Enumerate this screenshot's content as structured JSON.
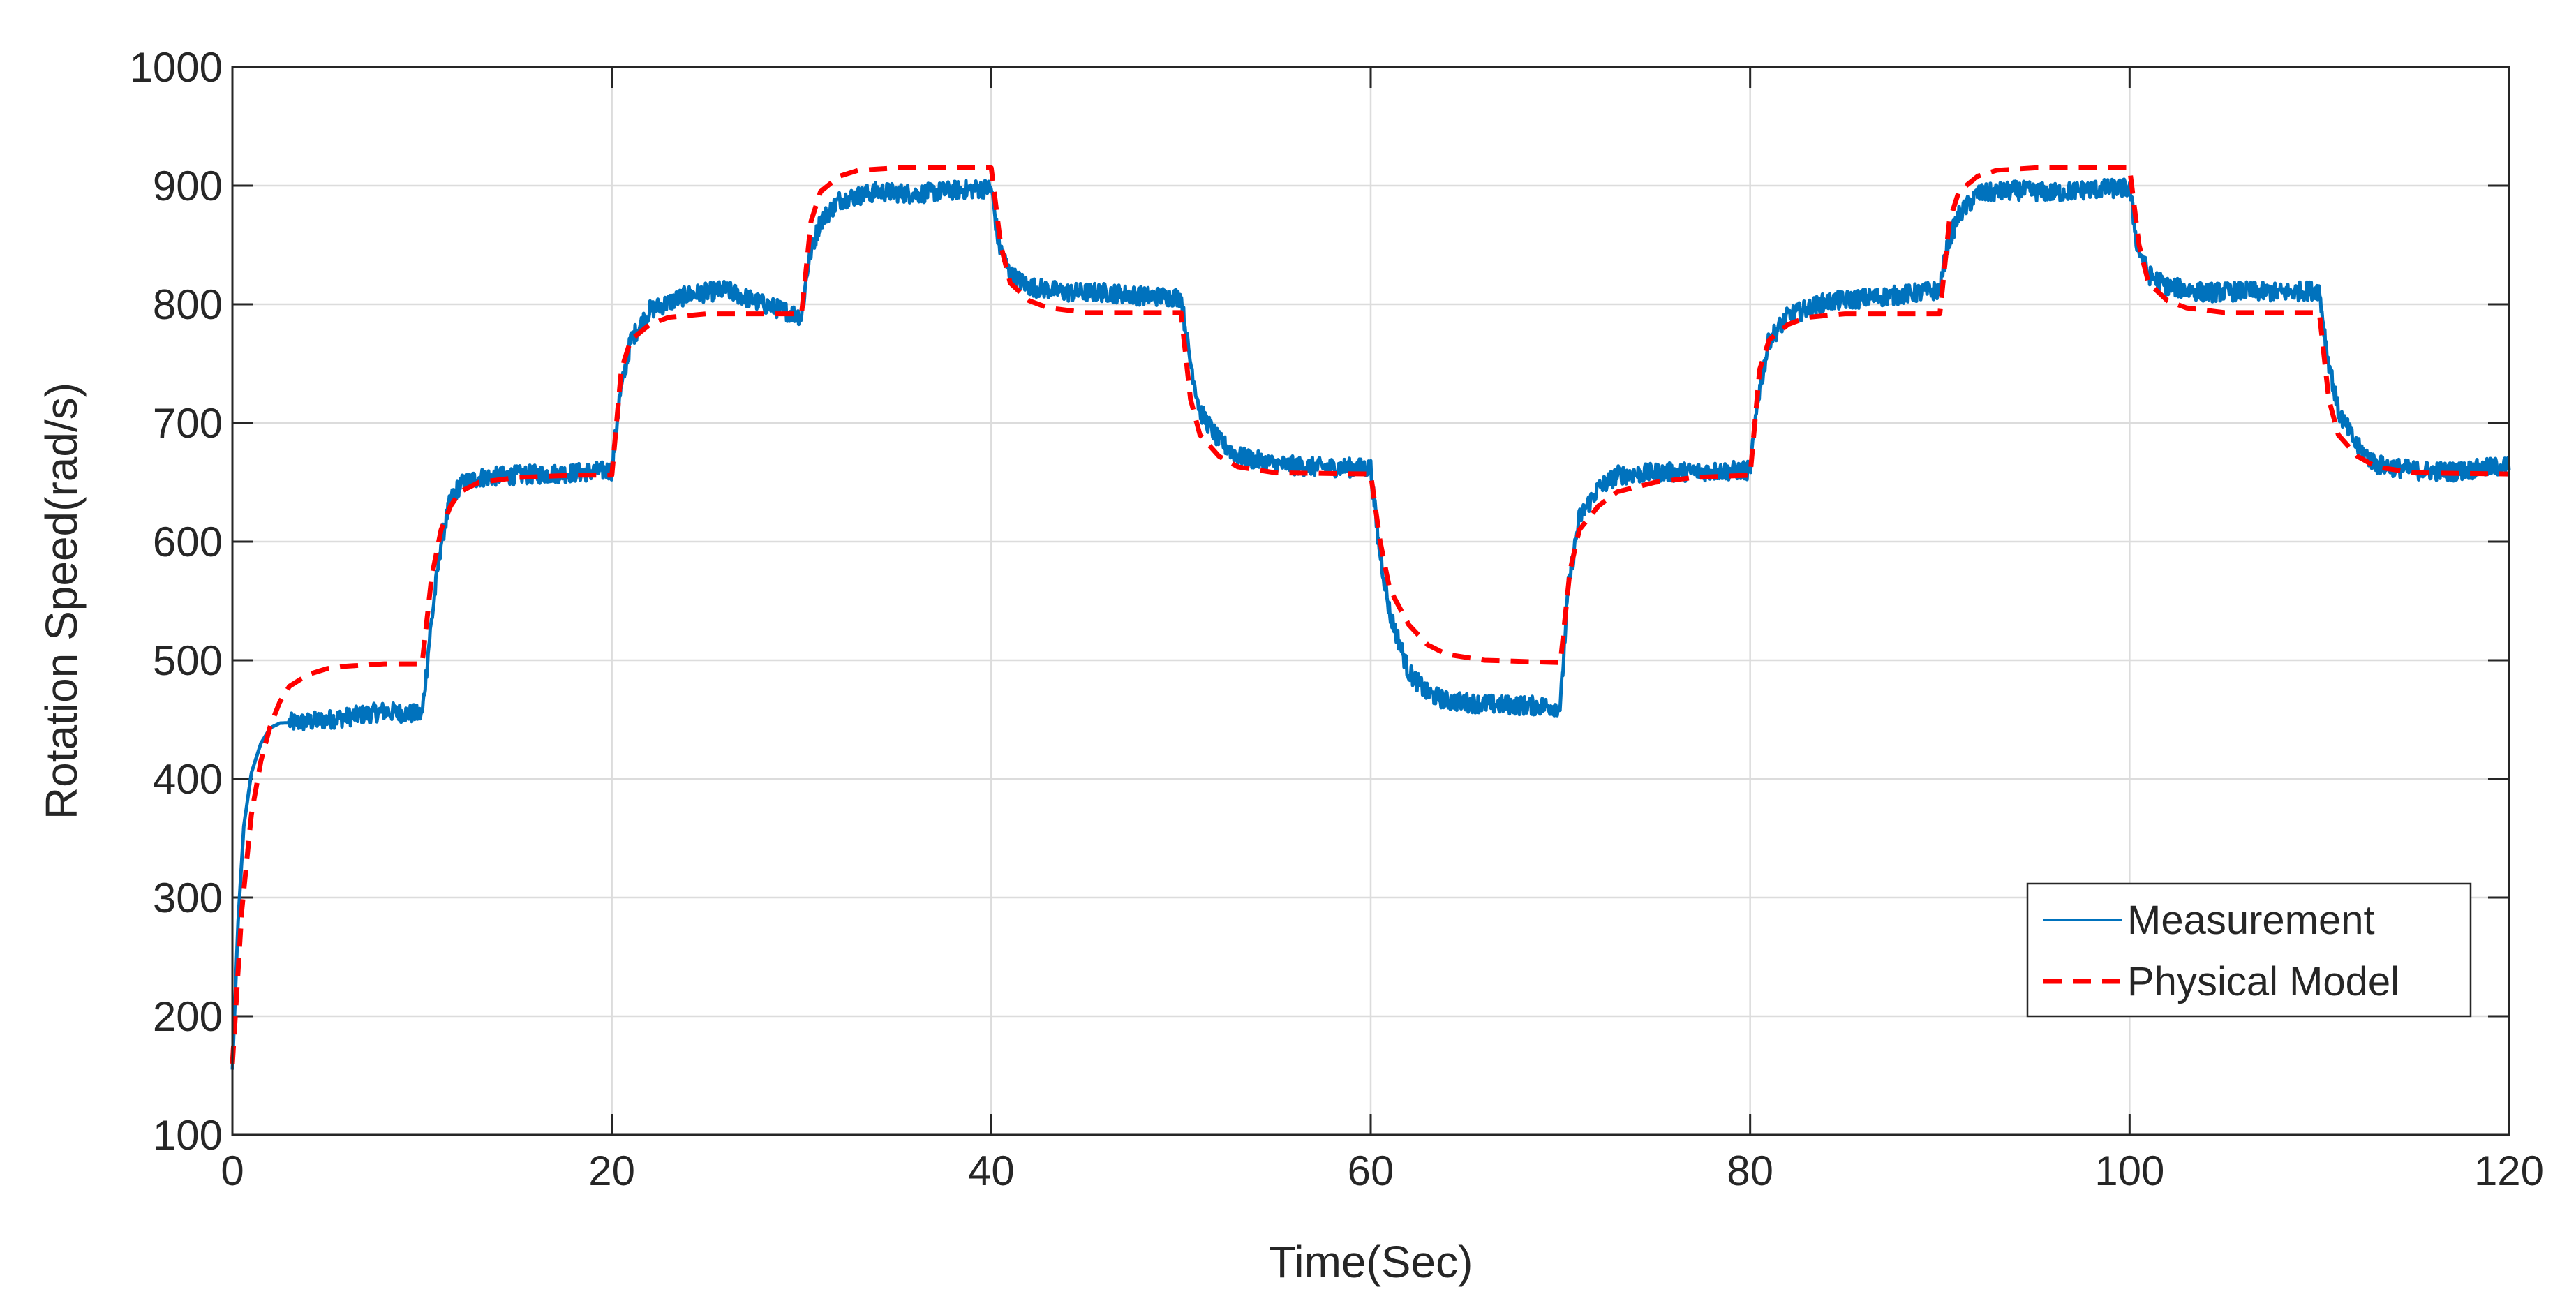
{
  "chart_data": {
    "type": "line",
    "title": "",
    "xlabel": "Time(Sec)",
    "ylabel": "Rotation Speed(rad/s)",
    "xlim": [
      0,
      120
    ],
    "ylim": [
      100,
      1000
    ],
    "xticks": [
      0,
      20,
      40,
      60,
      80,
      100,
      120
    ],
    "yticks": [
      100,
      200,
      300,
      400,
      500,
      600,
      700,
      800,
      900,
      1000
    ],
    "xtick_labels": [
      "0",
      "20",
      "40",
      "60",
      "80",
      "100",
      "120"
    ],
    "ytick_labels": [
      "100",
      "200",
      "300",
      "400",
      "500",
      "600",
      "700",
      "800",
      "900",
      "1000"
    ],
    "grid": true,
    "legend_position": "bottom-right",
    "series": [
      {
        "name": "Measurement",
        "color": "#0072BD",
        "style": "solid",
        "noise_band": 8,
        "points": [
          [
            0,
            155
          ],
          [
            0.3,
            280
          ],
          [
            0.6,
            360
          ],
          [
            1,
            405
          ],
          [
            1.5,
            430
          ],
          [
            2,
            443
          ],
          [
            2.5,
            447
          ],
          [
            4,
            448
          ],
          [
            6,
            452
          ],
          [
            8,
            457
          ],
          [
            10,
            454
          ],
          [
            10.4,
            520
          ],
          [
            11,
            600
          ],
          [
            11.5,
            635
          ],
          [
            12,
            648
          ],
          [
            13,
            654
          ],
          [
            15,
            656
          ],
          [
            18,
            658
          ],
          [
            20,
            660
          ],
          [
            20.4,
            720
          ],
          [
            21,
            770
          ],
          [
            22,
            795
          ],
          [
            24,
            808
          ],
          [
            26,
            812
          ],
          [
            28,
            800
          ],
          [
            30,
            790
          ],
          [
            30.4,
            840
          ],
          [
            31,
            870
          ],
          [
            32,
            888
          ],
          [
            34,
            895
          ],
          [
            36,
            893
          ],
          [
            38,
            896
          ],
          [
            40,
            898
          ],
          [
            40.4,
            850
          ],
          [
            41,
            825
          ],
          [
            42,
            815
          ],
          [
            44,
            810
          ],
          [
            46,
            810
          ],
          [
            48,
            807
          ],
          [
            50,
            806
          ],
          [
            50.4,
            760
          ],
          [
            51,
            710
          ],
          [
            52,
            685
          ],
          [
            53,
            672
          ],
          [
            55,
            665
          ],
          [
            57,
            663
          ],
          [
            60,
            662
          ],
          [
            60.4,
            600
          ],
          [
            61,
            540
          ],
          [
            62,
            490
          ],
          [
            63,
            472
          ],
          [
            64,
            466
          ],
          [
            66,
            463
          ],
          [
            68,
            462
          ],
          [
            70,
            461
          ],
          [
            70.4,
            560
          ],
          [
            71,
            620
          ],
          [
            72,
            645
          ],
          [
            73,
            656
          ],
          [
            75,
            658
          ],
          [
            77,
            659
          ],
          [
            80,
            660
          ],
          [
            80.4,
            720
          ],
          [
            81,
            770
          ],
          [
            82,
            790
          ],
          [
            84,
            802
          ],
          [
            86,
            805
          ],
          [
            88,
            808
          ],
          [
            90,
            812
          ],
          [
            90.4,
            850
          ],
          [
            91,
            875
          ],
          [
            92,
            893
          ],
          [
            94,
            896
          ],
          [
            96,
            894
          ],
          [
            98,
            897
          ],
          [
            100,
            898
          ],
          [
            100.4,
            850
          ],
          [
            101,
            825
          ],
          [
            102,
            815
          ],
          [
            104,
            810
          ],
          [
            106,
            811
          ],
          [
            108,
            810
          ],
          [
            110,
            812
          ],
          [
            110.4,
            760
          ],
          [
            111,
            710
          ],
          [
            112,
            680
          ],
          [
            113,
            665
          ],
          [
            115,
            660
          ],
          [
            117,
            659
          ],
          [
            120,
            664
          ]
        ]
      },
      {
        "name": "Physical Model",
        "color": "#FF0000",
        "style": "dashed",
        "points": [
          [
            0,
            160
          ],
          [
            0.5,
            290
          ],
          [
            1,
            370
          ],
          [
            1.5,
            415
          ],
          [
            2,
            445
          ],
          [
            2.5,
            465
          ],
          [
            3,
            478
          ],
          [
            4,
            488
          ],
          [
            5,
            493
          ],
          [
            6,
            495
          ],
          [
            8,
            497
          ],
          [
            10,
            497
          ],
          [
            10.5,
            570
          ],
          [
            11,
            610
          ],
          [
            11.5,
            630
          ],
          [
            12,
            642
          ],
          [
            13,
            650
          ],
          [
            15,
            654
          ],
          [
            18,
            656
          ],
          [
            20,
            656
          ],
          [
            20.5,
            745
          ],
          [
            21,
            770
          ],
          [
            22,
            783
          ],
          [
            23,
            789
          ],
          [
            25,
            792
          ],
          [
            30,
            792
          ],
          [
            30.5,
            870
          ],
          [
            31,
            895
          ],
          [
            32,
            908
          ],
          [
            33,
            913
          ],
          [
            35,
            915
          ],
          [
            40,
            915
          ],
          [
            40.5,
            850
          ],
          [
            41,
            818
          ],
          [
            42,
            803
          ],
          [
            43,
            797
          ],
          [
            45,
            793
          ],
          [
            50,
            793
          ],
          [
            50.5,
            720
          ],
          [
            51,
            690
          ],
          [
            52,
            672
          ],
          [
            53,
            663
          ],
          [
            55,
            658
          ],
          [
            60,
            657
          ],
          [
            60.5,
            600
          ],
          [
            61,
            560
          ],
          [
            62,
            530
          ],
          [
            63,
            513
          ],
          [
            64,
            505
          ],
          [
            66,
            500
          ],
          [
            70,
            498
          ],
          [
            70.5,
            575
          ],
          [
            71,
            610
          ],
          [
            72,
            630
          ],
          [
            73,
            642
          ],
          [
            75,
            650
          ],
          [
            77,
            654
          ],
          [
            80,
            656
          ],
          [
            80.5,
            745
          ],
          [
            81,
            770
          ],
          [
            82,
            783
          ],
          [
            83,
            789
          ],
          [
            85,
            792
          ],
          [
            90,
            792
          ],
          [
            90.5,
            870
          ],
          [
            91,
            895
          ],
          [
            92,
            908
          ],
          [
            93,
            913
          ],
          [
            95,
            915
          ],
          [
            100,
            915
          ],
          [
            100.5,
            850
          ],
          [
            101,
            818
          ],
          [
            102,
            803
          ],
          [
            103,
            797
          ],
          [
            105,
            793
          ],
          [
            110,
            793
          ],
          [
            110.5,
            720
          ],
          [
            111,
            690
          ],
          [
            112,
            672
          ],
          [
            113,
            663
          ],
          [
            115,
            658
          ],
          [
            120,
            657
          ]
        ]
      }
    ]
  }
}
